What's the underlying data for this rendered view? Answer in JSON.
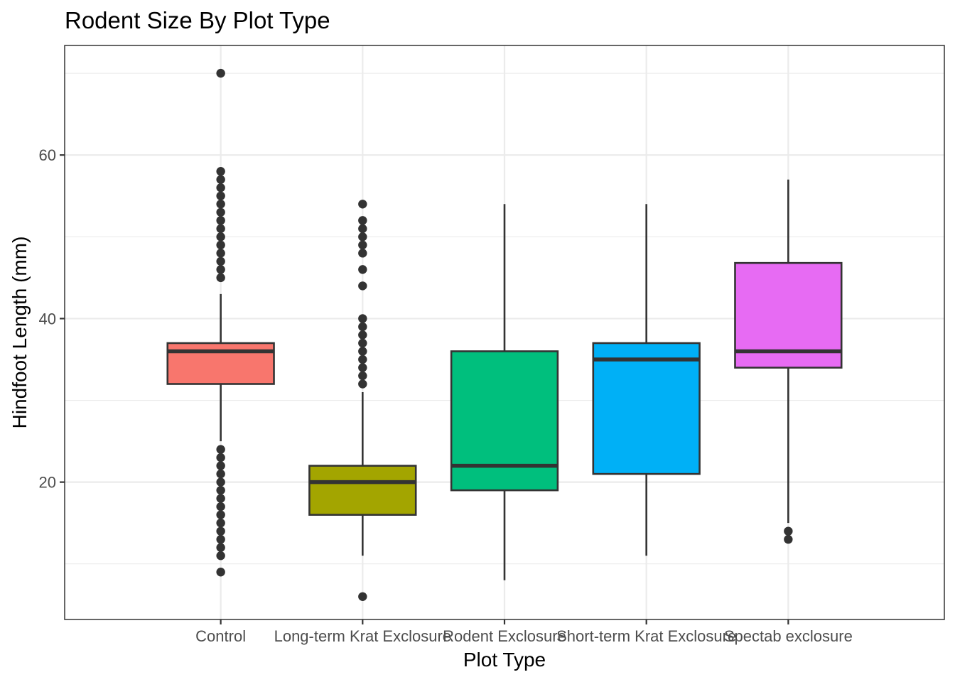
{
  "chart_data": {
    "type": "box",
    "title": "Rodent Size By Plot Type",
    "xlabel": "Plot Type",
    "ylabel": "Hindfoot Length (mm)",
    "ylim": [
      3.2,
      73.4
    ],
    "yticks": [
      20,
      40,
      60
    ],
    "yminor": [
      10,
      30,
      50,
      70
    ],
    "grid": true,
    "legend": "none",
    "categories": [
      "Control",
      "Long-term Krat Exclosure",
      "Rodent Exclosure",
      "Short-term Krat Exclosure",
      "Spectab exclosure"
    ],
    "colors": [
      "#F8766D",
      "#A3A500",
      "#00BF7D",
      "#00B0F6",
      "#E76BF3"
    ],
    "boxes": [
      {
        "min": 25,
        "q1": 32,
        "median": 36,
        "q3": 37,
        "max": 43,
        "outliers": [
          70,
          58,
          57,
          56,
          55,
          54,
          53,
          52,
          51,
          50,
          49,
          48,
          47,
          46,
          45,
          24,
          23,
          22,
          21,
          20,
          19,
          18,
          17,
          16,
          15,
          14,
          13,
          12,
          11,
          9
        ]
      },
      {
        "min": 11,
        "q1": 16,
        "median": 20,
        "q3": 22,
        "max": 31,
        "outliers": [
          54,
          52,
          51,
          50,
          49,
          48,
          46,
          44,
          40,
          39,
          38,
          37,
          36,
          35,
          34,
          33,
          32,
          6
        ]
      },
      {
        "min": 8,
        "q1": 19,
        "median": 22,
        "q3": 36,
        "max": 54,
        "outliers": []
      },
      {
        "min": 11,
        "q1": 21,
        "median": 35,
        "q3": 37,
        "max": 54,
        "outliers": []
      },
      {
        "min": 15,
        "q1": 34,
        "median": 36,
        "q3": 46.8,
        "max": 57,
        "outliers": [
          14,
          13
        ]
      }
    ]
  }
}
